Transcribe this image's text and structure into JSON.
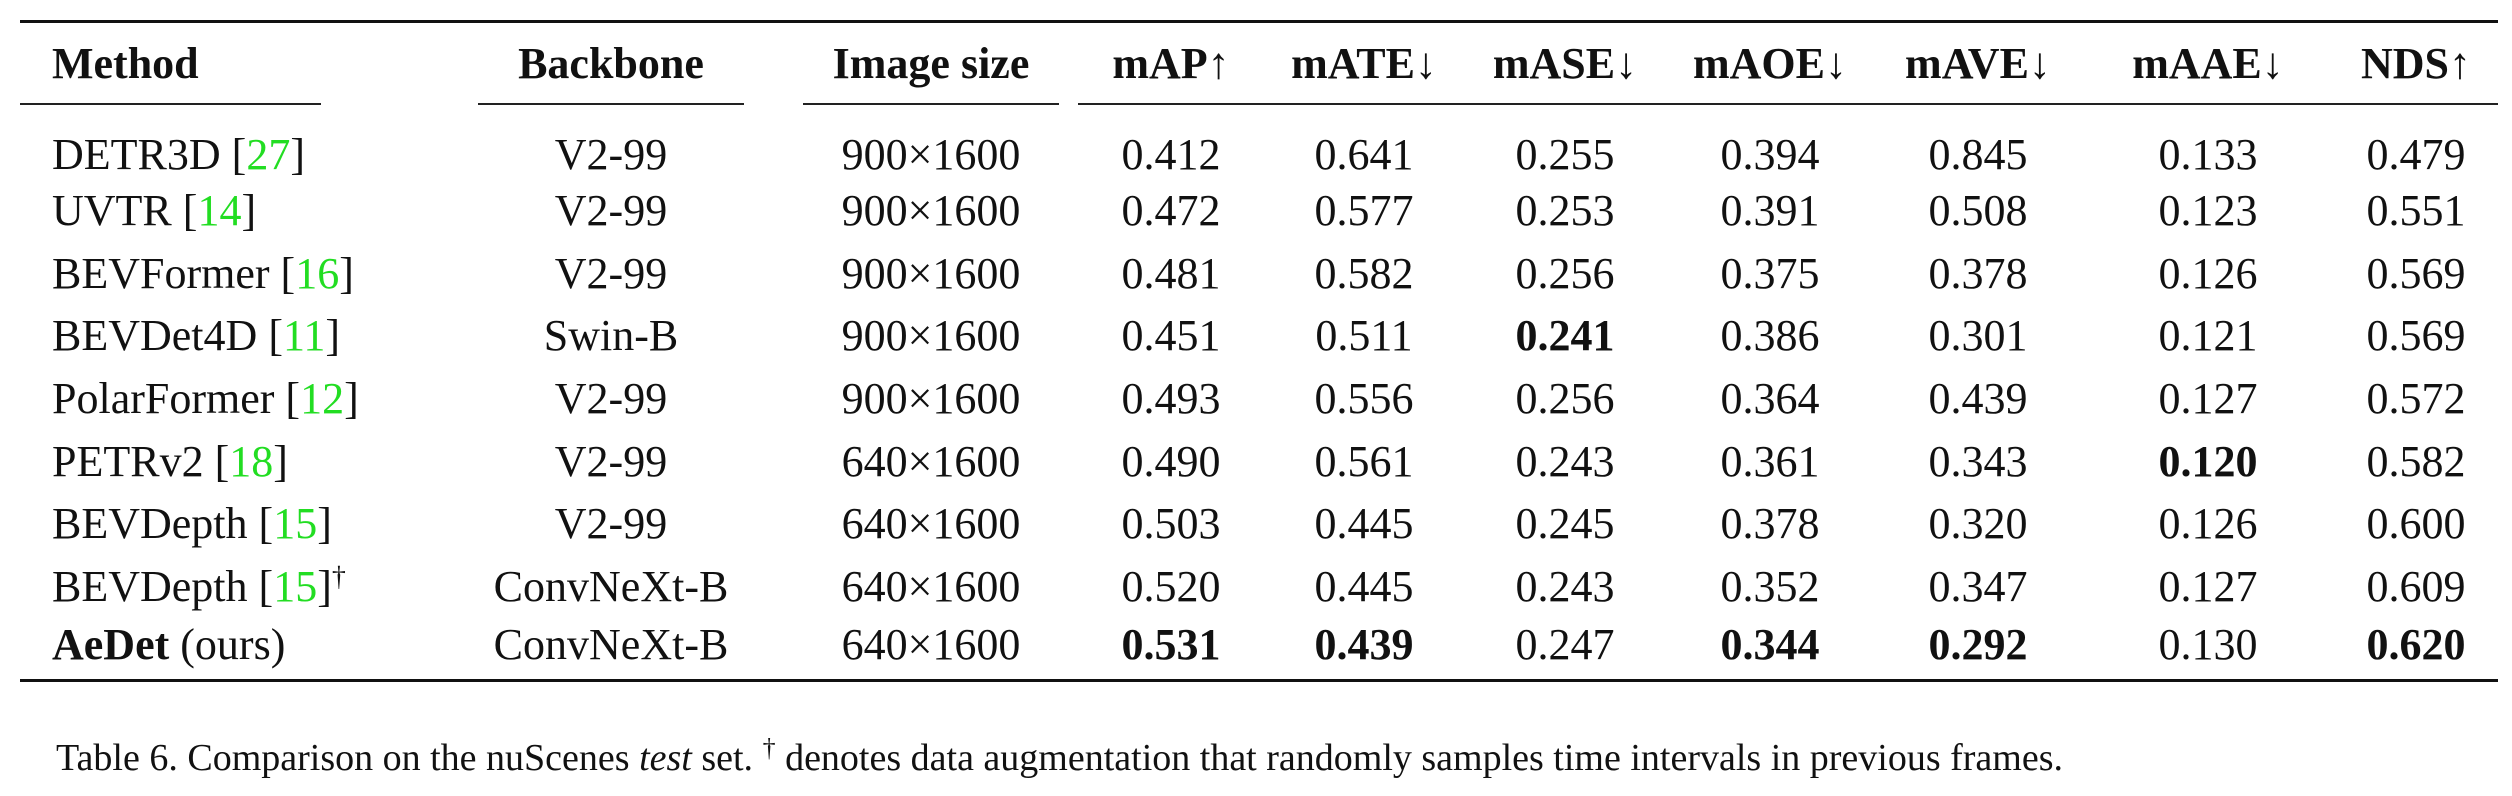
{
  "table": {
    "headers": {
      "method": "Method",
      "backbone": "Backbone",
      "image_size": "Image size",
      "map": "mAP↑",
      "mate": "mATE↓",
      "mase": "mASE↓",
      "maoe": "mAOE↓",
      "mave": "mAVE↓",
      "maae": "mAAE↓",
      "nds": "NDS↑"
    },
    "rows": [
      {
        "method": "DETR3D",
        "cite": "27",
        "backbone": "V2-99",
        "image_size": "900×1600",
        "map": "0.412",
        "mate": "0.641",
        "mase": "0.255",
        "maoe": "0.394",
        "mave": "0.845",
        "maae": "0.133",
        "nds": "0.479"
      },
      {
        "method": "UVTR",
        "cite": "14",
        "backbone": "V2-99",
        "image_size": "900×1600",
        "map": "0.472",
        "mate": "0.577",
        "mase": "0.253",
        "maoe": "0.391",
        "mave": "0.508",
        "maae": "0.123",
        "nds": "0.551"
      },
      {
        "method": "BEVFormer",
        "cite": "16",
        "backbone": "V2-99",
        "image_size": "900×1600",
        "map": "0.481",
        "mate": "0.582",
        "mase": "0.256",
        "maoe": "0.375",
        "mave": "0.378",
        "maae": "0.126",
        "nds": "0.569"
      },
      {
        "method": "BEVDet4D",
        "cite": "11",
        "backbone": "Swin-B",
        "image_size": "900×1600",
        "map": "0.451",
        "mate": "0.511",
        "mase": "0.241",
        "maoe": "0.386",
        "mave": "0.301",
        "maae": "0.121",
        "nds": "0.569"
      },
      {
        "method": "PolarFormer",
        "cite": "12",
        "backbone": "V2-99",
        "image_size": "900×1600",
        "map": "0.493",
        "mate": "0.556",
        "mase": "0.256",
        "maoe": "0.364",
        "mave": "0.439",
        "maae": "0.127",
        "nds": "0.572"
      },
      {
        "method": "PETRv2",
        "cite": "18",
        "backbone": "V2-99",
        "image_size": "640×1600",
        "map": "0.490",
        "mate": "0.561",
        "mase": "0.243",
        "maoe": "0.361",
        "mave": "0.343",
        "maae": "0.120",
        "nds": "0.582"
      },
      {
        "method": "BEVDepth",
        "cite": "15",
        "backbone": "V2-99",
        "image_size": "640×1600",
        "map": "0.503",
        "mate": "0.445",
        "mase": "0.245",
        "maoe": "0.378",
        "mave": "0.320",
        "maae": "0.126",
        "nds": "0.600"
      },
      {
        "method": "BEVDepth",
        "cite": "15",
        "dagger": "†",
        "backbone": "ConvNeXt-B",
        "image_size": "640×1600",
        "map": "0.520",
        "mate": "0.445",
        "mase": "0.243",
        "maoe": "0.352",
        "mave": "0.347",
        "maae": "0.127",
        "nds": "0.609"
      },
      {
        "method": "AeDet",
        "suffix": "(ours)",
        "backbone": "ConvNeXt-B",
        "image_size": "640×1600",
        "map": "0.531",
        "mate": "0.439",
        "mase": "0.247",
        "maoe": "0.344",
        "mave": "0.292",
        "maae": "0.130",
        "nds": "0.620"
      }
    ]
  },
  "caption": {
    "prefix": "Table 6. Comparison on the nuScenes ",
    "emphasis": "test",
    "middle": " set. ",
    "dagger": "†",
    "suffix": " denotes data augmentation that randomly samples time intervals in previous frames."
  }
}
